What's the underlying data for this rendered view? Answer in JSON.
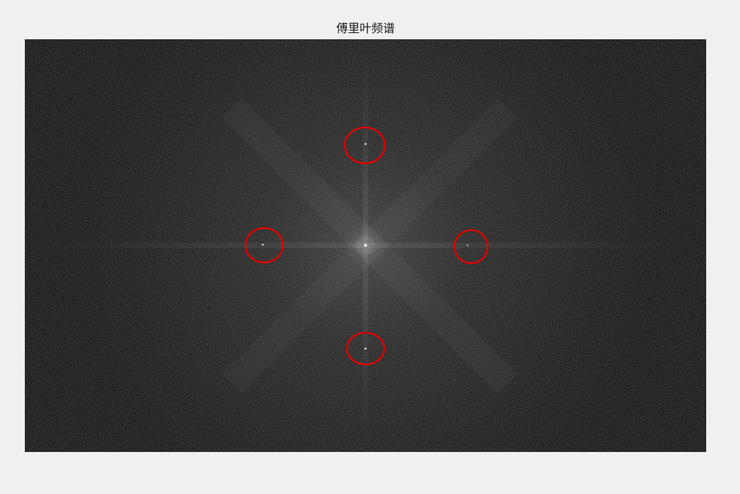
{
  "figure": {
    "title": "傅里叶频谱"
  },
  "image": {
    "description_kind": "fourier-magnitude-spectrum",
    "background_color": "#1e1e1e",
    "center_glow_color": "#4a4a4a",
    "peak_color": "#ffffff"
  },
  "annotations": {
    "marker_color": "#e00000",
    "markers": [
      {
        "name": "top-peak"
      },
      {
        "name": "left-peak"
      },
      {
        "name": "right-peak"
      },
      {
        "name": "bottom-peak"
      }
    ]
  }
}
